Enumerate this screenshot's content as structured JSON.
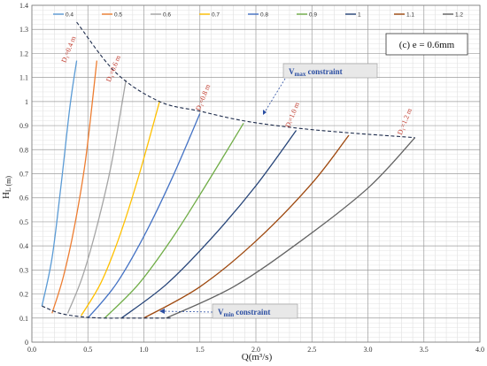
{
  "chart_data": {
    "type": "line",
    "xlabel": "Q(m³/s)",
    "ylabel": "H",
    "ylabel_sub": "L (m)",
    "xlim": [
      0.0,
      4.0
    ],
    "ylim": [
      0.0,
      1.4
    ],
    "x_ticks": [
      "0.0",
      "0.5",
      "1.0",
      "1.5",
      "2.0",
      "2.5",
      "3.0",
      "3.5",
      "4.0"
    ],
    "y_ticks": [
      "0",
      "0.1",
      "0.2",
      "0.3",
      "0.4",
      "0.5",
      "0.6",
      "0.7",
      "0.8",
      "0.9",
      "1",
      "1.1",
      "1.2",
      "1.3",
      "1.4"
    ],
    "grid": true,
    "legend_position": "top",
    "inset_label": "(c) e = 0.6mm",
    "series": [
      {
        "name": "0.4",
        "color": "#5b9bd5",
        "x": [
          0.09,
          0.18,
          0.26,
          0.34,
          0.4
        ],
        "y": [
          0.15,
          0.35,
          0.65,
          0.98,
          1.17
        ]
      },
      {
        "name": "0.5",
        "color": "#ed7d31",
        "x": [
          0.18,
          0.28,
          0.38,
          0.48,
          0.58
        ],
        "y": [
          0.12,
          0.27,
          0.48,
          0.76,
          1.17
        ]
      },
      {
        "name": "0.6",
        "color": "#a5a5a5",
        "x": [
          0.32,
          0.45,
          0.58,
          0.71,
          0.84
        ],
        "y": [
          0.12,
          0.27,
          0.48,
          0.74,
          1.09
        ]
      },
      {
        "name": "0.7",
        "color": "#ffc000",
        "x": [
          0.44,
          0.62,
          0.79,
          0.96,
          1.14
        ],
        "y": [
          0.11,
          0.25,
          0.45,
          0.7,
          1.0
        ]
      },
      {
        "name": "0.8",
        "color": "#4472c4",
        "x": [
          0.5,
          0.75,
          1.0,
          1.25,
          1.5
        ],
        "y": [
          0.1,
          0.24,
          0.44,
          0.68,
          0.95
        ]
      },
      {
        "name": "0.9",
        "color": "#70ad47",
        "x": [
          0.65,
          0.95,
          1.25,
          1.55,
          1.89
        ],
        "y": [
          0.1,
          0.24,
          0.43,
          0.65,
          0.91
        ]
      },
      {
        "name": "1",
        "color": "#264478",
        "x": [
          0.8,
          1.2,
          1.6,
          2.0,
          2.36
        ],
        "y": [
          0.1,
          0.24,
          0.43,
          0.65,
          0.88
        ]
      },
      {
        "name": "1.1",
        "color": "#9e480e",
        "x": [
          1.0,
          1.5,
          2.0,
          2.5,
          2.83
        ],
        "y": [
          0.1,
          0.23,
          0.42,
          0.66,
          0.86
        ]
      },
      {
        "name": "1.2",
        "color": "#636363",
        "x": [
          1.2,
          1.8,
          2.4,
          3.0,
          3.42
        ],
        "y": [
          0.1,
          0.23,
          0.42,
          0.64,
          0.85
        ]
      }
    ],
    "curve_labels": [
      {
        "text": "D₁=0.4 m",
        "x": 0.3,
        "y": 1.16
      },
      {
        "text": "D₁=0.6 m",
        "x": 0.7,
        "y": 1.08
      },
      {
        "text": "D₁=0.8 m",
        "x": 1.5,
        "y": 0.96
      },
      {
        "text": "Dᵢ=1.0 m",
        "x": 2.3,
        "y": 0.89
      },
      {
        "text": "D₁=1.2 m",
        "x": 3.3,
        "y": 0.86
      }
    ],
    "constraints": {
      "vmax": {
        "label_main": "V",
        "label_sub": "max",
        "label_rest": " constraint",
        "x": [
          0.4,
          0.75,
          1.14,
          1.5,
          1.89,
          2.36,
          2.83,
          3.42
        ],
        "y": [
          1.33,
          1.12,
          1.0,
          0.96,
          0.92,
          0.89,
          0.87,
          0.85
        ]
      },
      "vmin": {
        "label_main": "V",
        "label_sub": "min",
        "label_rest": " constraint",
        "x": [
          0.09,
          0.25,
          0.45,
          0.65,
          0.85,
          1.1,
          1.25
        ],
        "y": [
          0.15,
          0.12,
          0.105,
          0.1,
          0.1,
          0.1,
          0.1
        ]
      }
    }
  }
}
